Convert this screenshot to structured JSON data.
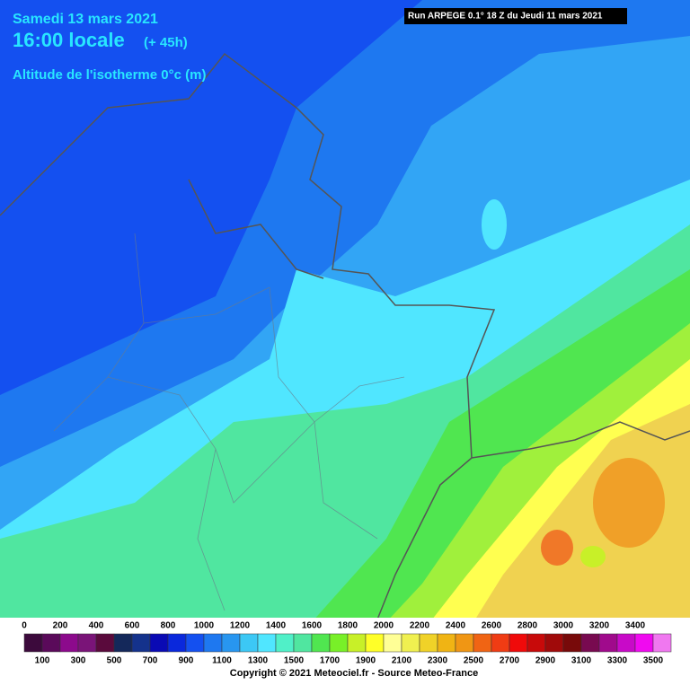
{
  "header": {
    "date": "Samedi 13 mars 2021",
    "time": "16:00 locale",
    "lead": "(+ 45h)",
    "field": "Altitude de l'isotherme 0°c (m)",
    "run": "Run ARPEGE 0.1° 18 Z du Jeudi 11 mars 2021"
  },
  "legend": {
    "ticks": [
      0,
      100,
      200,
      300,
      400,
      500,
      600,
      700,
      800,
      900,
      1000,
      1100,
      1200,
      1300,
      1400,
      1500,
      1600,
      1700,
      1800,
      1900,
      2000,
      2100,
      2200,
      2300,
      2400,
      2500,
      2600,
      2700,
      2800,
      2900,
      3000,
      3100,
      3200,
      3300,
      3400,
      3500
    ],
    "colors": [
      "#3c0a3c",
      "#5a0a5a",
      "#8c0a8c",
      "#7a1478",
      "#5a0a3c",
      "#14285a",
      "#14328c",
      "#0a0ab4",
      "#0a28dc",
      "#1450f0",
      "#1e78f0",
      "#2896f0",
      "#3cc8f5",
      "#50e6ff",
      "#50f0c8",
      "#50e6a0",
      "#50e650",
      "#78f028",
      "#c8f028",
      "#ffff28",
      "#ffff96",
      "#f0f050",
      "#f0d228",
      "#f0b414",
      "#f09614",
      "#f06414",
      "#f03c14",
      "#f00a0a",
      "#c80a0a",
      "#a00a0a",
      "#780a0a",
      "#780a50",
      "#a00a8c",
      "#c80ac8",
      "#f00af0",
      "#f078f0"
    ]
  },
  "footer": {
    "copyright": "Copyright © 2021 Meteociel.fr - Source Meteo-France"
  }
}
